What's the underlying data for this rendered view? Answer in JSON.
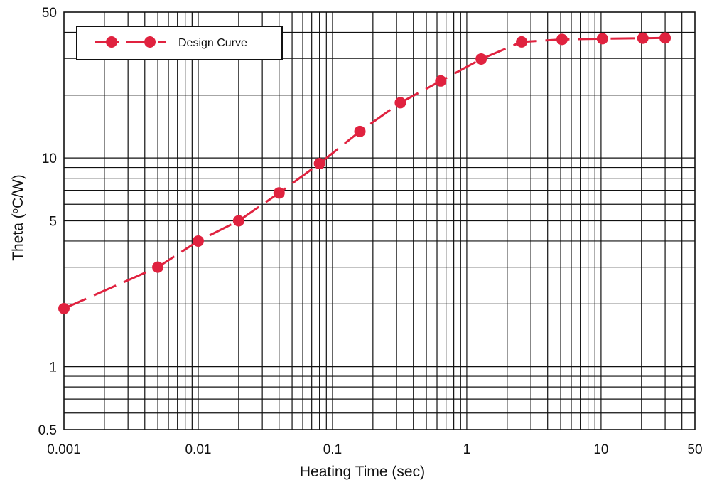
{
  "chart_data": {
    "type": "line",
    "title": "",
    "xlabel": "Heating Time (sec)",
    "ylabel_prefix": "Theta (",
    "ylabel_sup": "o",
    "ylabel_suffix": "C/W)",
    "x_scale": "log",
    "y_scale": "log",
    "xlim": [
      0.001,
      50
    ],
    "ylim": [
      0.5,
      50
    ],
    "grid": true,
    "legend_position": "top-left",
    "x_ticks": [
      {
        "value": 0.001,
        "label": "0.001"
      },
      {
        "value": 0.01,
        "label": "0.01"
      },
      {
        "value": 0.1,
        "label": "0.1"
      },
      {
        "value": 1,
        "label": "1"
      },
      {
        "value": 10,
        "label": "10"
      },
      {
        "value": 50,
        "label": "50"
      }
    ],
    "y_ticks": [
      {
        "value": 0.5,
        "label": "0.5"
      },
      {
        "value": 1,
        "label": "1"
      },
      {
        "value": 5,
        "label": "5"
      },
      {
        "value": 10,
        "label": "10"
      },
      {
        "value": 50,
        "label": "50"
      }
    ],
    "series": [
      {
        "name": "Design Curve",
        "color": "#e0223f",
        "line_style": "dashed",
        "marker": "circle",
        "x": [
          0.001,
          0.005,
          0.01,
          0.02,
          0.04,
          0.08,
          0.16,
          0.32,
          0.64,
          1.28,
          2.56,
          5.12,
          10.24,
          20.48,
          30
        ],
        "y": [
          1.9,
          3.0,
          4.0,
          5.0,
          6.8,
          9.4,
          13.4,
          18.4,
          23.4,
          29.8,
          36.0,
          37.0,
          37.3,
          37.5,
          37.6
        ]
      }
    ]
  }
}
